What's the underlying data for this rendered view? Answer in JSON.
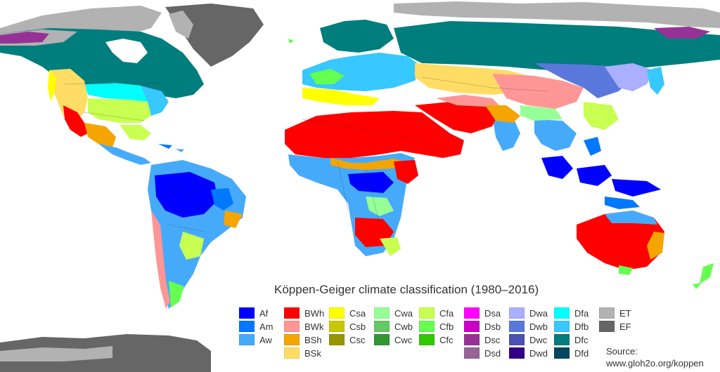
{
  "map": {
    "title": "Köppen-Geiger climate classification  (1980–2016)",
    "source_label": "Source:",
    "source_url": "www.gloh2o.org/koppen",
    "colors": {
      "ocean": "#ffffff",
      "Af": "#0000ff",
      "Am": "#0078ff",
      "Aw": "#46aafa",
      "BWh": "#ff0000",
      "BWk": "#ff9696",
      "BSh": "#f5a500",
      "BSk": "#ffdc64",
      "Csa": "#ffff00",
      "Csb": "#c8c800",
      "Csc": "#969600",
      "Cwa": "#96ff96",
      "Cwb": "#64c864",
      "Cwc": "#329632",
      "Cfa": "#c8ff50",
      "Cfb": "#64ff50",
      "Cfc": "#32c800",
      "Dsa": "#ff00ff",
      "Dsb": "#c800c8",
      "Dsc": "#963296",
      "Dsd": "#966496",
      "Dwa": "#aaafff",
      "Dwb": "#5a78dc",
      "Dwc": "#4b50b4",
      "Dwd": "#320087",
      "Dfa": "#00ffff",
      "Dfb": "#37c8ff",
      "Dfc": "#007d7d",
      "Dfd": "#00465f",
      "ET": "#b2b2b2",
      "EF": "#666666"
    },
    "legend": [
      [
        "Af",
        "Am",
        "Aw"
      ],
      [
        "BWh",
        "BWk",
        "BSh",
        "BSk"
      ],
      [
        "Csa",
        "Csb",
        "Csc"
      ],
      [
        "Cwa",
        "Cwb",
        "Cwc"
      ],
      [
        "Cfa",
        "Cfb",
        "Cfc"
      ],
      [
        "Dsa",
        "Dsb",
        "Dsc",
        "Dsd"
      ],
      [
        "Dwa",
        "Dwb",
        "Dwc",
        "Dwd"
      ],
      [
        "Dfa",
        "Dfb",
        "Dfc",
        "Dfd"
      ],
      [
        "ET",
        "EF"
      ]
    ]
  }
}
